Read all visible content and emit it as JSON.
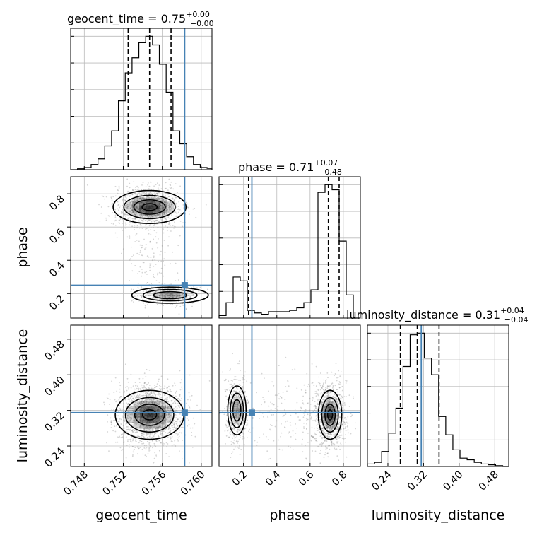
{
  "chart_data": {
    "type": "corner",
    "parameters": [
      "geocent_time",
      "phase",
      "luminosity_distance"
    ],
    "axis_labels": [
      "geocent_time",
      "phase",
      "luminosity_distance"
    ],
    "axis_ranges": {
      "geocent_time": [
        0.7466,
        0.7611
      ],
      "phase": [
        0.0525,
        0.9025
      ],
      "luminosity_distance": [
        0.194,
        0.5115
      ]
    },
    "ticks": {
      "geocent_time": {
        "values": [
          0.748,
          0.752,
          0.756,
          0.76
        ],
        "labels": [
          "0.748",
          "0.752",
          "0.756",
          "0.760"
        ]
      },
      "phase": {
        "values": [
          0.2,
          0.4,
          0.6,
          0.8
        ],
        "labels": [
          "0.2",
          "0.4",
          "0.6",
          "0.8"
        ]
      },
      "luminosity_distance": {
        "values": [
          0.24,
          0.32,
          0.4,
          0.48
        ],
        "labels": [
          "0.24",
          "0.32",
          "0.40",
          "0.48"
        ]
      }
    },
    "injection": {
      "geocent_time": 0.7583,
      "phase": 0.25,
      "luminosity_distance": 0.315
    },
    "titles": [
      {
        "param": "geocent_time",
        "name": "geocent_time",
        "median": "0.75",
        "plus": "+0.00",
        "minus": "−0.00"
      },
      {
        "param": "phase",
        "name": "phase",
        "median": "0.71",
        "plus": "+0.07",
        "minus": "−0.48"
      },
      {
        "param": "luminosity_distance",
        "name": "luminosity_distance",
        "median": "0.31",
        "plus": "+0.04",
        "minus": "−0.04"
      }
    ],
    "quantiles": {
      "geocent_time": [
        0.7525,
        0.7547,
        0.7569
      ],
      "phase": [
        0.23,
        0.71,
        0.775
      ],
      "luminosity_distance": [
        0.268,
        0.306,
        0.355
      ]
    },
    "histograms": {
      "geocent_time": {
        "bins": [
          0.7466,
          0.7473,
          0.748,
          0.7487,
          0.7494,
          0.7501,
          0.7508,
          0.7515,
          0.7522,
          0.7529,
          0.7536,
          0.7543,
          0.755,
          0.7557,
          0.7564,
          0.7571,
          0.7578,
          0.7585,
          0.7592,
          0.7599,
          0.7606,
          0.7613
        ],
        "counts": [
          0,
          2,
          5,
          12,
          25,
          55,
          90,
          160,
          225,
          260,
          295,
          310,
          290,
          245,
          180,
          90,
          60,
          30,
          12,
          5,
          3
        ]
      },
      "phase": {
        "bins": [
          0.0525,
          0.095,
          0.1375,
          0.18,
          0.2225,
          0.265,
          0.3075,
          0.35,
          0.3925,
          0.435,
          0.4775,
          0.52,
          0.5625,
          0.605,
          0.6475,
          0.69,
          0.7325,
          0.775,
          0.8175,
          0.86,
          0.9025
        ],
        "counts": [
          2,
          12,
          32,
          29,
          6,
          4,
          3,
          5,
          5,
          5,
          6,
          8,
          12,
          22,
          98,
          104,
          100,
          60,
          18,
          0
        ]
      },
      "luminosity_distance": {
        "bins": [
          0.194,
          0.21,
          0.226,
          0.242,
          0.258,
          0.274,
          0.29,
          0.306,
          0.322,
          0.338,
          0.354,
          0.37,
          0.386,
          0.402,
          0.418,
          0.434,
          0.45,
          0.466,
          0.482,
          0.498,
          0.514
        ],
        "counts": [
          3,
          5,
          18,
          40,
          70,
          120,
          158,
          160,
          130,
          110,
          60,
          38,
          20,
          10,
          8,
          5,
          3,
          2,
          1,
          0
        ]
      }
    },
    "grid": true,
    "colors": {
      "truth": "#4682b4",
      "line": "#000000",
      "grid": "#bbbbbb",
      "samples": "#888888"
    }
  }
}
